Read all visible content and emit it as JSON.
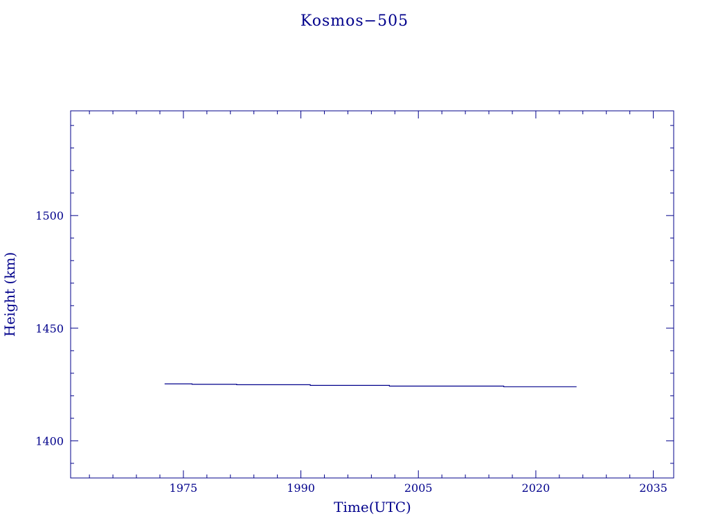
{
  "chart_data": {
    "type": "line",
    "title": "Kosmos−505",
    "xlabel": "Time(UTC)",
    "ylabel": "Height (km)",
    "xlim": [
      1960.6,
      2037.6
    ],
    "ylim": [
      1383.5,
      1546.5
    ],
    "x_major_ticks": [
      1975,
      1990,
      2005,
      2020,
      2035
    ],
    "x_minor_step": 3,
    "y_major_ticks": [
      1400,
      1450,
      1500
    ],
    "y_minor_step": 10,
    "grid": false,
    "colors": {
      "axis": "#00008b",
      "line": "#00008b",
      "text": "#00008b"
    },
    "series": [
      {
        "x": [
          1972.6,
          1976.1,
          1976.1,
          1981.8,
          1981.8,
          1991.2,
          1991.2,
          2001.3,
          2001.3,
          2015.9,
          2015.9,
          2025.2
        ],
        "y": [
          1425.3,
          1425.3,
          1425.1,
          1425.1,
          1424.9,
          1424.9,
          1424.6,
          1424.6,
          1424.3,
          1424.3,
          1424.0,
          1424.0
        ]
      }
    ]
  }
}
